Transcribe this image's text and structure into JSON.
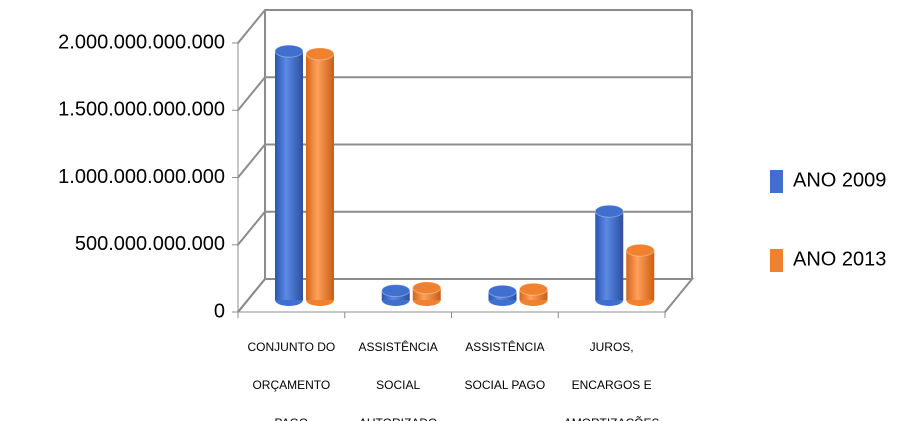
{
  "chart_data": {
    "type": "bar3d",
    "categories": [
      "CONJUNTO DO ORÇAMENTO PAGO",
      "ASSISTÊNCIA SOCIAL AUTORIZADO",
      "ASSISTÊNCIA SOCIAL PAGO",
      "JUROS, ENCARGOS E AMORTIZAÇÕES"
    ],
    "series": [
      {
        "name": "ANO 2009",
        "color": "#3f6fcf",
        "values": [
          1850000000000,
          70000000000,
          65000000000,
          660000000000
        ]
      },
      {
        "name": "ANO 2013",
        "color": "#f0812e",
        "values": [
          1830000000000,
          90000000000,
          80000000000,
          370000000000
        ]
      }
    ],
    "ylim": [
      0,
      2000000000000
    ],
    "yticks": [
      0,
      {
        "value": 500000000000,
        "label": "500.000.000.000"
      },
      {
        "value": 1000000000000,
        "label": "1.000.000.000.000"
      },
      {
        "value": 1500000000000,
        "label": "1.500.000.000.000"
      },
      {
        "value": 2000000000000,
        "label": "2.000.000.000.000"
      }
    ],
    "grid": true,
    "legend": "right"
  }
}
